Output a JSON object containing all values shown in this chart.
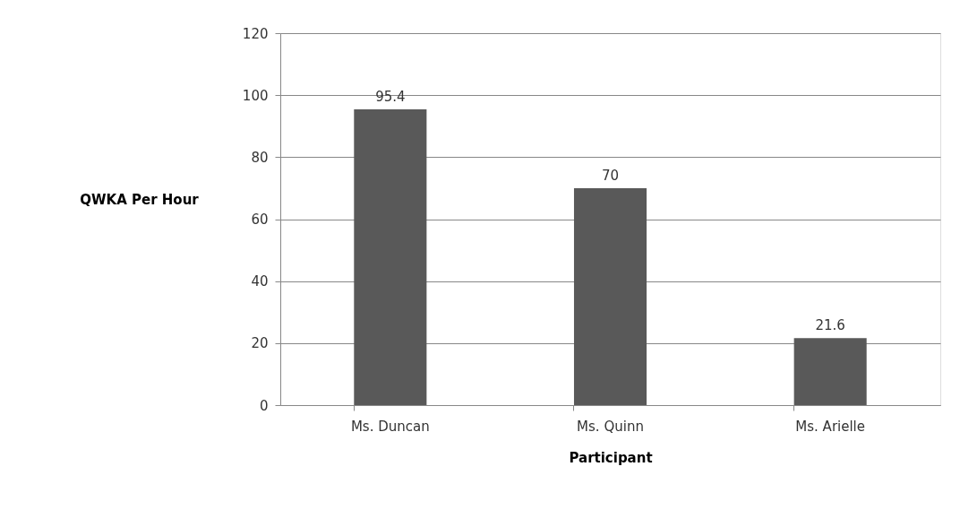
{
  "chart_data": {
    "type": "bar",
    "xlabel": "Participant",
    "ylabel": "QWKA Per Hour",
    "categories": [
      "Ms. Duncan",
      "Ms. Quinn",
      "Ms. Arielle"
    ],
    "values": [
      95.4,
      70,
      21.6
    ],
    "color": "#595959",
    "ylim": [
      0,
      120
    ],
    "yticks": [
      0,
      20,
      40,
      60,
      80,
      100,
      120
    ],
    "grid": "y",
    "data_labels": true
  }
}
